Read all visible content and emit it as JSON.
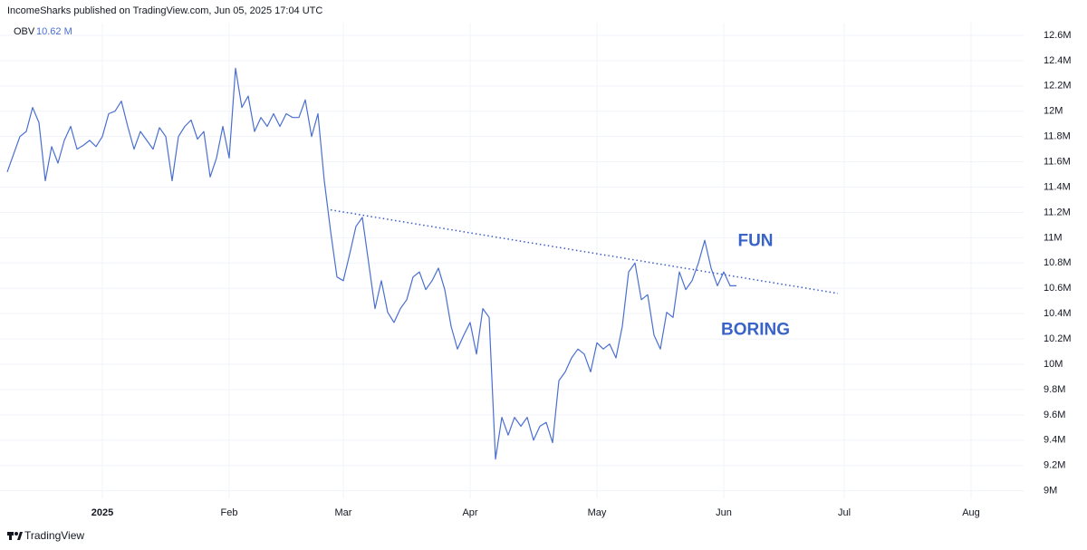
{
  "header": "IncomeSharks published on TradingView.com, Jun 05, 2025 17:04 UTC",
  "footer": "TradingView",
  "chart_data": {
    "type": "line",
    "indicator": {
      "name": "OBV",
      "value": 10.62,
      "value_label": "10.62 M"
    },
    "categories": [
      null,
      null,
      null,
      null,
      null,
      null,
      null,
      null,
      null,
      null,
      null,
      null,
      null,
      null,
      null,
      "2025",
      null,
      null,
      null,
      null,
      null,
      null,
      null,
      null,
      null,
      null,
      null,
      null,
      null,
      null,
      null,
      null,
      null,
      null,
      null,
      "Feb",
      null,
      null,
      null,
      null,
      null,
      null,
      null,
      null,
      null,
      null,
      null,
      null,
      null,
      null,
      null,
      null,
      null,
      "Mar",
      null,
      null,
      null,
      null,
      null,
      null,
      null,
      null,
      null,
      null,
      null,
      null,
      null,
      null,
      null,
      null,
      null,
      null,
      null,
      "Apr",
      null,
      null,
      null,
      null,
      null,
      null,
      null,
      null,
      null,
      null,
      null,
      null,
      null,
      null,
      null,
      null,
      null,
      null,
      null,
      "May",
      null,
      null,
      null,
      null,
      null,
      null,
      null,
      null,
      null,
      null,
      null,
      null,
      null,
      null,
      null,
      null,
      null,
      null,
      null,
      "Jun",
      null,
      null,
      null,
      null,
      null,
      null,
      null,
      null,
      null,
      null,
      null,
      null,
      null,
      null,
      null,
      null,
      null,
      null,
      "Jul",
      null,
      null,
      null,
      null,
      null,
      null,
      null,
      null,
      null,
      null,
      null,
      null,
      null,
      null,
      null,
      null,
      null,
      null,
      null,
      "Aug",
      null,
      null,
      null,
      null,
      null,
      null,
      null,
      null
    ],
    "series": [
      {
        "name": "OBV",
        "color": "#4a6fd1",
        "values": [
          11.52,
          11.66,
          11.8,
          11.84,
          12.03,
          11.91,
          11.45,
          11.72,
          11.59,
          11.77,
          11.88,
          11.7,
          11.73,
          11.77,
          11.72,
          11.8,
          11.98,
          12.0,
          12.08,
          11.88,
          11.7,
          11.84,
          11.77,
          11.7,
          11.87,
          11.8,
          11.45,
          11.8,
          11.88,
          11.93,
          11.78,
          11.84,
          11.48,
          11.63,
          11.88,
          11.63,
          12.34,
          12.03,
          12.12,
          11.84,
          11.95,
          11.88,
          11.98,
          11.88,
          11.98,
          11.95,
          11.95,
          12.09,
          11.8,
          11.98,
          11.45,
          11.05,
          10.69,
          10.66,
          10.87,
          11.09,
          11.16,
          10.8,
          10.44,
          10.66,
          10.41,
          10.33,
          10.44,
          10.51,
          10.69,
          10.73,
          10.59,
          10.66,
          10.76,
          10.59,
          10.3,
          10.12,
          10.23,
          10.33,
          10.08,
          10.44,
          10.37,
          9.25,
          9.58,
          9.44,
          9.58,
          9.51,
          9.58,
          9.4,
          9.51,
          9.54,
          9.38,
          9.87,
          9.94,
          10.05,
          10.12,
          10.08,
          9.94,
          10.17,
          10.12,
          10.16,
          10.05,
          10.3,
          10.73,
          10.8,
          10.51,
          10.55,
          10.23,
          10.12,
          10.41,
          10.37,
          10.73,
          10.59,
          10.66,
          10.8,
          10.98,
          10.76,
          10.62,
          10.73,
          10.62,
          10.62,
          null,
          null,
          null,
          null,
          null,
          null,
          null,
          null,
          null,
          null,
          null,
          null,
          null,
          null,
          null,
          null,
          null,
          null,
          null,
          null,
          null,
          null,
          null,
          null,
          null,
          null,
          null,
          null,
          null,
          null,
          null,
          null,
          null,
          null,
          null,
          null,
          null,
          null,
          null,
          null,
          null,
          null,
          null,
          null,
          null
        ]
      }
    ],
    "trendline": {
      "x": [
        51,
        131
      ],
      "values": [
        11.22,
        10.56
      ],
      "color": "#3a5bc7"
    },
    "annotations": [
      {
        "text": "FUN",
        "x": 118,
        "y": 10.97
      },
      {
        "text": "BORING",
        "x": 118,
        "y": 10.27
      }
    ],
    "annotation_color": "#3a63c8",
    "ylim": [
      8.94,
      12.7
    ],
    "yticks": [
      {
        "value": 9,
        "label": "9M"
      },
      {
        "value": 9.2,
        "label": "9.2M"
      },
      {
        "value": 9.4,
        "label": "9.4M"
      },
      {
        "value": 9.6,
        "label": "9.6M"
      },
      {
        "value": 9.8,
        "label": "9.8M"
      },
      {
        "value": 10,
        "label": "10M"
      },
      {
        "value": 10.2,
        "label": "10.2M"
      },
      {
        "value": 10.4,
        "label": "10.4M"
      },
      {
        "value": 10.6,
        "label": "10.6M"
      },
      {
        "value": 10.8,
        "label": "10.8M"
      },
      {
        "value": 11,
        "label": "11M"
      },
      {
        "value": 11.2,
        "label": "11.2M"
      },
      {
        "value": 11.4,
        "label": "11.4M"
      },
      {
        "value": 11.6,
        "label": "11.6M"
      },
      {
        "value": 11.8,
        "label": "11.8M"
      },
      {
        "value": 12,
        "label": "12M"
      },
      {
        "value": 12.2,
        "label": "12.2M"
      },
      {
        "value": 12.4,
        "label": "12.4M"
      },
      {
        "value": 12.6,
        "label": "12.6M"
      }
    ],
    "grid": true
  }
}
